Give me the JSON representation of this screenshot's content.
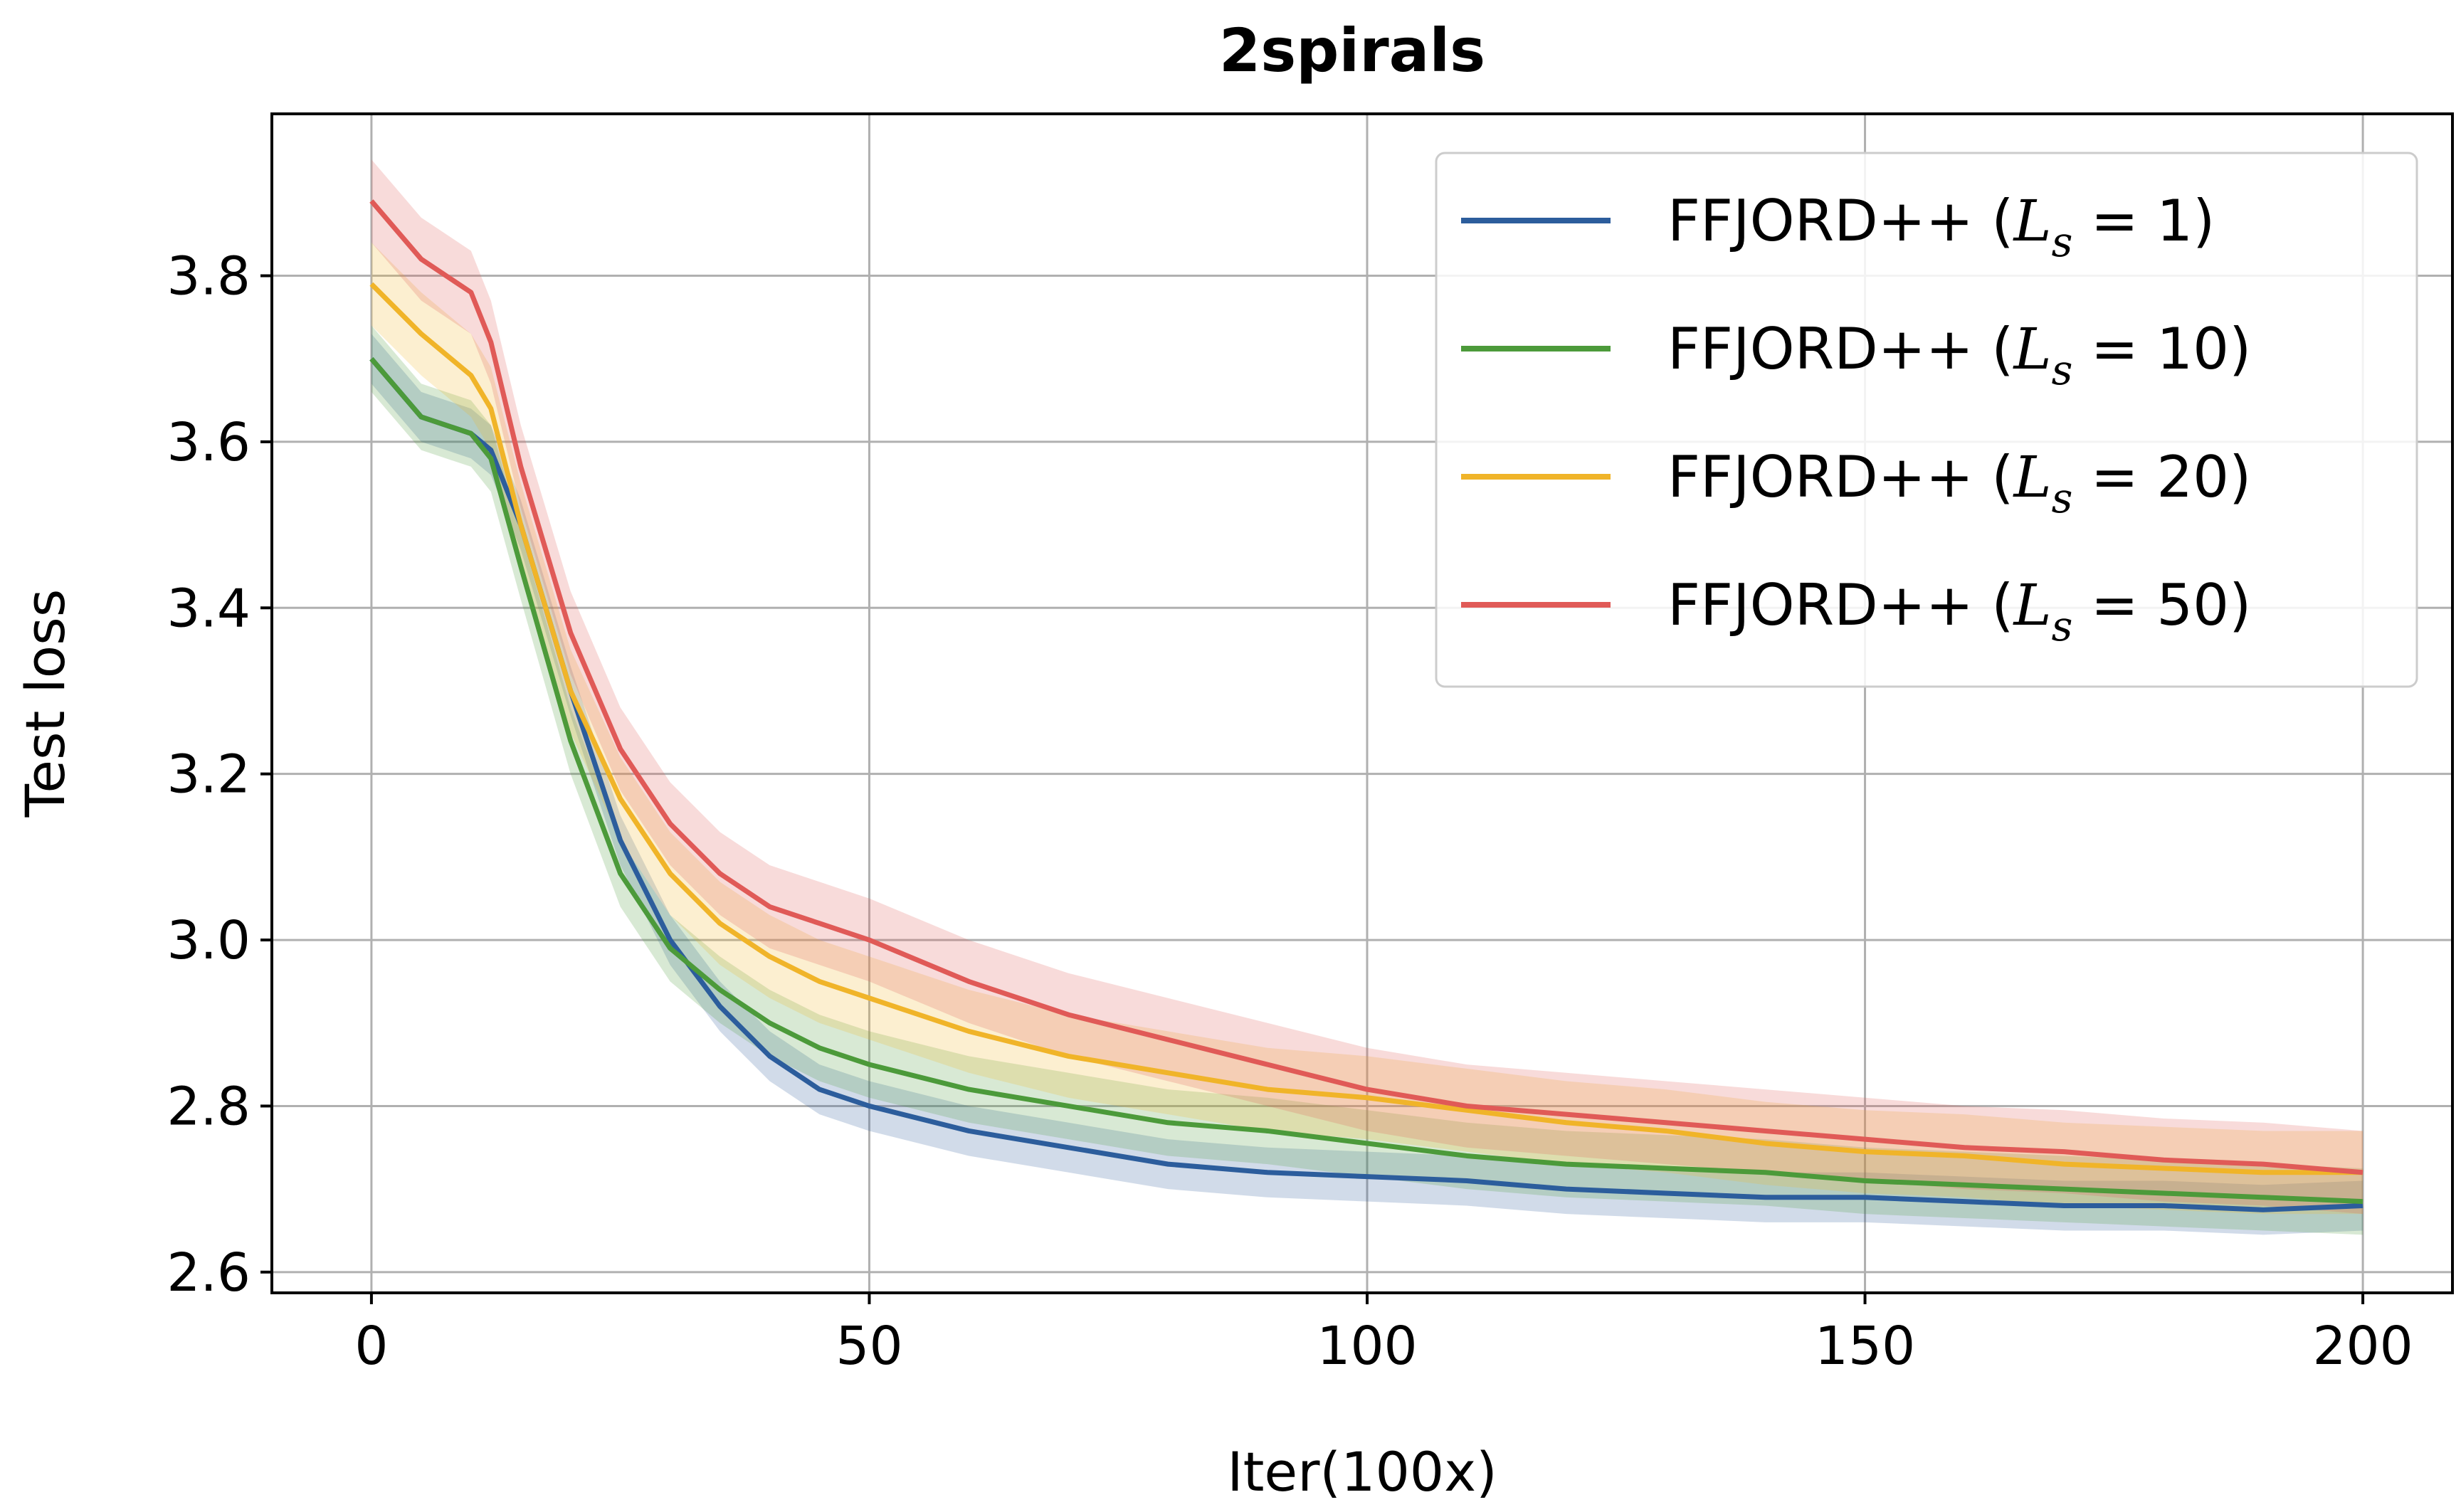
{
  "chart_data": {
    "type": "line",
    "title": "2spirals",
    "xlabel": "Iter(100x)",
    "ylabel": "Test loss",
    "xlim": [
      -10,
      209
    ],
    "ylim": [
      2.575,
      3.995
    ],
    "xticks": [
      0,
      50,
      100,
      150,
      200
    ],
    "xtick_labels": [
      "0",
      "50",
      "100",
      "150",
      "200"
    ],
    "yticks": [
      2.6,
      2.8,
      3.0,
      3.2,
      3.4,
      3.6,
      3.8
    ],
    "ytick_labels": [
      "2.6",
      "2.8",
      "3.0",
      "3.2",
      "3.4",
      "3.6",
      "3.8"
    ],
    "grid": true,
    "legend_position": "top-right",
    "x": [
      0,
      5,
      10,
      12,
      15,
      20,
      25,
      30,
      35,
      40,
      45,
      50,
      60,
      70,
      80,
      90,
      100,
      110,
      120,
      130,
      140,
      150,
      160,
      170,
      180,
      190,
      200
    ],
    "series": [
      {
        "name_prefix": "FFJORD++ (",
        "name_var": "L",
        "name_sub": "s",
        "name_suffix": " = 1)",
        "color": "#2c5d9c",
        "values": [
          3.7,
          3.63,
          3.61,
          3.59,
          3.5,
          3.3,
          3.12,
          3.0,
          2.92,
          2.86,
          2.82,
          2.8,
          2.77,
          2.75,
          2.73,
          2.72,
          2.715,
          2.71,
          2.7,
          2.695,
          2.69,
          2.69,
          2.685,
          2.68,
          2.68,
          2.675,
          2.68
        ],
        "band": 0.03
      },
      {
        "name_prefix": "FFJORD++ (",
        "name_var": "L",
        "name_sub": "s",
        "name_suffix": " = 10)",
        "color": "#4c9a3a",
        "values": [
          3.7,
          3.63,
          3.61,
          3.58,
          3.45,
          3.24,
          3.08,
          2.99,
          2.94,
          2.9,
          2.87,
          2.85,
          2.82,
          2.8,
          2.78,
          2.77,
          2.755,
          2.74,
          2.73,
          2.725,
          2.72,
          2.71,
          2.705,
          2.7,
          2.695,
          2.69,
          2.685
        ],
        "band": 0.04
      },
      {
        "name_prefix": "FFJORD++ (",
        "name_var": "L",
        "name_sub": "s",
        "name_suffix": " = 20)",
        "color": "#f0b429",
        "values": [
          3.79,
          3.73,
          3.68,
          3.64,
          3.5,
          3.3,
          3.17,
          3.08,
          3.02,
          2.98,
          2.95,
          2.93,
          2.89,
          2.86,
          2.84,
          2.82,
          2.81,
          2.795,
          2.78,
          2.77,
          2.755,
          2.745,
          2.74,
          2.73,
          2.725,
          2.72,
          2.72
        ],
        "band": 0.05
      },
      {
        "name_prefix": "FFJORD++ (",
        "name_var": "L",
        "name_sub": "s",
        "name_suffix": " = 50)",
        "color": "#e05a57",
        "values": [
          3.89,
          3.82,
          3.78,
          3.72,
          3.57,
          3.37,
          3.23,
          3.14,
          3.08,
          3.04,
          3.02,
          3.0,
          2.95,
          2.91,
          2.88,
          2.85,
          2.82,
          2.8,
          2.79,
          2.78,
          2.77,
          2.76,
          2.75,
          2.745,
          2.735,
          2.73,
          2.72
        ],
        "band": 0.05
      }
    ]
  }
}
